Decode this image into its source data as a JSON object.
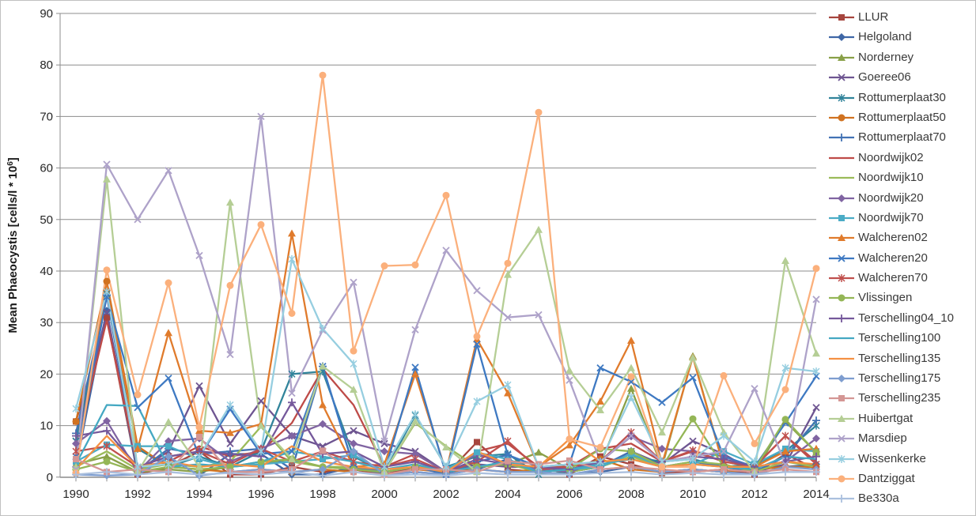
{
  "chart_data": {
    "type": "line",
    "title": "",
    "xlabel": "",
    "ylabel_main": "Mean Phaeocystis [cells/l * 10",
    "ylabel_sup": "6",
    "ylabel_close": "]",
    "ylim": [
      0,
      90
    ],
    "y_ticks": [
      0,
      10,
      20,
      30,
      40,
      50,
      60,
      70,
      80,
      90
    ],
    "x": [
      1990,
      1991,
      1992,
      1993,
      1994,
      1995,
      1996,
      1997,
      1998,
      1999,
      2000,
      2001,
      2002,
      2003,
      2004,
      2005,
      2006,
      2007,
      2008,
      2009,
      2010,
      2011,
      2012,
      2013,
      2014
    ],
    "x_tick_labels": [
      "1990",
      "1992",
      "1994",
      "1996",
      "1998",
      "2000",
      "2002",
      "2004",
      "2006",
      "2008",
      "2010",
      "2012",
      "2014"
    ],
    "grid": true,
    "legend_position": "right",
    "series": [
      {
        "name": "LLUR",
        "color": "#A6453E",
        "marker": "square",
        "values": [
          10.8,
          31,
          0.5,
          2,
          5,
          0.5,
          0.5,
          2,
          1,
          1.5,
          0.5,
          2,
          0.5,
          6.8,
          1.5,
          1,
          0.5,
          4,
          2.5,
          0.8,
          1,
          1.5,
          0.5,
          4.5,
          1.5
        ]
      },
      {
        "name": "Helgoland",
        "color": "#3F67A6",
        "marker": "diamond",
        "values": [
          2,
          32.3,
          0.5,
          3.8,
          0.3,
          4.5,
          4.5,
          0.5,
          0.5,
          2,
          0.5,
          1,
          0.5,
          1.5,
          3.5,
          1,
          0.5,
          1,
          2,
          1,
          1.5,
          1,
          0.5,
          2,
          2.5
        ]
      },
      {
        "name": "Norderney",
        "color": "#89A048",
        "marker": "triangle",
        "values": [
          2.5,
          4,
          1,
          1.5,
          1,
          2,
          2.5,
          3.5,
          2,
          1.5,
          1,
          2,
          1,
          2,
          2.5,
          4.8,
          1.5,
          2.5,
          17.2,
          2,
          23.5,
          2,
          1,
          10.8,
          4.8
        ]
      },
      {
        "name": "Goeree06",
        "color": "#6E5591",
        "marker": "x",
        "values": [
          7,
          32,
          1,
          5,
          17.7,
          6.5,
          14.8,
          8,
          6,
          9,
          6.5,
          5,
          1,
          2.5,
          2,
          2,
          1,
          2,
          5,
          2.5,
          7,
          4.5,
          1,
          2.5,
          13.5
        ]
      },
      {
        "name": "Rottumerplaat30",
        "color": "#31849B",
        "marker": "asterisk",
        "values": [
          7,
          35.5,
          5.5,
          2,
          4,
          2,
          5,
          20,
          20.5,
          4,
          1,
          12,
          2,
          4,
          4.5,
          0.5,
          1,
          2,
          4,
          3,
          3.5,
          2,
          2.5,
          5,
          10
        ]
      },
      {
        "name": "Rottumerplaat50",
        "color": "#D07220",
        "marker": "circle",
        "values": [
          10.8,
          38,
          6,
          2,
          1.5,
          1,
          1.5,
          1,
          1.5,
          1,
          0.5,
          1.5,
          1,
          1.5,
          1,
          1.5,
          1,
          3.5,
          1.5,
          1,
          1.5,
          1,
          1.5,
          2,
          2
        ]
      },
      {
        "name": "Rottumerplaat70",
        "color": "#4272B4",
        "marker": "plus",
        "values": [
          8.5,
          35.3,
          1,
          5.5,
          4.5,
          5,
          5.5,
          1.5,
          21.5,
          2,
          1,
          2,
          0.5,
          3,
          4.3,
          2,
          1.5,
          2,
          5,
          2,
          3,
          2,
          1,
          4,
          11
        ]
      },
      {
        "name": "Noordwijk02",
        "color": "#BE4B48",
        "marker": "none",
        "values": [
          5.5,
          30.5,
          2,
          3,
          6,
          4,
          5,
          10.5,
          21,
          14,
          2,
          4.5,
          1,
          5,
          6.5,
          2,
          2,
          5.5,
          6.5,
          3,
          5,
          3,
          2,
          8,
          3
        ]
      },
      {
        "name": "Noordwijk10",
        "color": "#9BBB59",
        "marker": "none",
        "values": [
          2,
          5,
          1.5,
          2.5,
          2,
          3,
          9.8,
          3,
          2,
          2,
          1,
          10.5,
          6,
          2,
          2.5,
          1.5,
          1,
          2,
          4,
          2,
          3,
          2.5,
          1,
          3,
          2
        ]
      },
      {
        "name": "Noordwijk20",
        "color": "#8064A2",
        "marker": "diamond",
        "values": [
          6.5,
          10.9,
          1,
          7,
          7.5,
          3,
          5.5,
          8,
          10.3,
          6.5,
          5,
          4.5,
          1,
          4.5,
          2.5,
          1.5,
          1,
          3,
          7.9,
          5.5,
          5,
          4,
          2,
          3,
          7.5
        ]
      },
      {
        "name": "Noordwijk70",
        "color": "#4BACC6",
        "marker": "square",
        "values": [
          3,
          6.3,
          6,
          6,
          3.5,
          2,
          2.5,
          3,
          3.5,
          4.3,
          1,
          2,
          1.5,
          4.8,
          3.5,
          1,
          1.5,
          2,
          4.5,
          2,
          2.5,
          5,
          2.5,
          5.5,
          5
        ]
      },
      {
        "name": "Walcheren02",
        "color": "#E07B2C",
        "marker": "triangle",
        "values": [
          2,
          36.8,
          5.5,
          28,
          9,
          8.6,
          10.3,
          47.3,
          14,
          2,
          2.5,
          20,
          1,
          26.8,
          16.3,
          2,
          6.2,
          14.7,
          26.5,
          2.5,
          23.3,
          2,
          2,
          5,
          5.5
        ]
      },
      {
        "name": "Walcheren20",
        "color": "#3E79C2",
        "marker": "x",
        "values": [
          4,
          35,
          13.5,
          19.2,
          4,
          13.2,
          4.5,
          5,
          21.5,
          2,
          1,
          21.3,
          0.5,
          25.8,
          4.3,
          2,
          2.5,
          21.2,
          18.5,
          14.5,
          19.3,
          4,
          2,
          10.5,
          19.6
        ]
      },
      {
        "name": "Walcheren70",
        "color": "#C0504D",
        "marker": "asterisk",
        "values": [
          5,
          6,
          2,
          4,
          5,
          2.5,
          5.5,
          3,
          5,
          3,
          2,
          3.5,
          1,
          3,
          7,
          1.5,
          2,
          3,
          8.7,
          3,
          5.2,
          3,
          2,
          8,
          2.5
        ]
      },
      {
        "name": "Vlissingen",
        "color": "#94B656",
        "marker": "circle",
        "values": [
          1.5,
          3,
          1,
          2,
          1.5,
          2,
          3,
          3.5,
          2,
          1.5,
          1,
          2,
          1,
          2,
          2.5,
          1,
          1.5,
          5.5,
          5,
          2,
          11.3,
          2,
          1.5,
          11.2,
          4.8
        ]
      },
      {
        "name": "Terschelling04_10",
        "color": "#75589B",
        "marker": "plus",
        "values": [
          8,
          9,
          2,
          4,
          5,
          4.5,
          4,
          14.5,
          4.5,
          5,
          2,
          3,
          1,
          3.5,
          2.5,
          2,
          1.5,
          3,
          8,
          3,
          4,
          3.5,
          2,
          3,
          4
        ]
      },
      {
        "name": "Terschelling100",
        "color": "#44A8C2",
        "marker": "none",
        "values": [
          2.5,
          14,
          13.8,
          2,
          2.5,
          2,
          3,
          5,
          4,
          3,
          1.5,
          2.5,
          1,
          2,
          3,
          1,
          1.5,
          2.5,
          3.5,
          2,
          2.5,
          2,
          1.5,
          4,
          3.5
        ]
      },
      {
        "name": "Terschelling135",
        "color": "#F49143",
        "marker": "none",
        "values": [
          1.5,
          8,
          2,
          3,
          2,
          2.5,
          2,
          6,
          3,
          2,
          1.5,
          2,
          1,
          5,
          2.5,
          2,
          7.4,
          3,
          3.5,
          2,
          2.5,
          2,
          2,
          3,
          2.5
        ]
      },
      {
        "name": "Terschelling175",
        "color": "#7E9DCF",
        "marker": "diamond",
        "values": [
          0.5,
          0.3,
          0.5,
          4,
          0.3,
          1,
          1.5,
          1,
          1.5,
          5,
          0.5,
          1,
          0.5,
          1.5,
          1,
          1,
          0.5,
          1.5,
          2,
          1,
          1.5,
          1,
          0.5,
          2,
          1.5
        ]
      },
      {
        "name": "Terschelling235",
        "color": "#D49694",
        "marker": "square",
        "values": [
          3.5,
          1,
          1.5,
          1,
          7.8,
          1,
          1,
          1.5,
          5.1,
          1,
          0.5,
          1.5,
          1.5,
          1,
          3.1,
          2.5,
          3.2,
          1.5,
          2,
          1.5,
          1,
          1.5,
          1,
          1.5,
          1
        ]
      },
      {
        "name": "Huibertgat",
        "color": "#B5CE95",
        "marker": "triangle",
        "values": [
          2,
          57.8,
          1,
          10.7,
          2,
          53.3,
          10,
          3.5,
          21.5,
          17,
          1,
          10.8,
          5.8,
          1,
          39.3,
          48,
          20.7,
          13,
          21.2,
          8.7,
          23.2,
          8.7,
          1,
          42,
          24
        ]
      },
      {
        "name": "Marsdiep",
        "color": "#AEA2C9",
        "marker": "x",
        "values": [
          1.5,
          60.7,
          50,
          59.5,
          43,
          23.8,
          70,
          16.3,
          28.5,
          37.8,
          7,
          28.6,
          44,
          36.2,
          31,
          31.5,
          18.8,
          3,
          8,
          3,
          4,
          5,
          17.2,
          2.5,
          34.5
        ]
      },
      {
        "name": "Wissenkerke",
        "color": "#96CEE0",
        "marker": "asterisk",
        "values": [
          13.3,
          36,
          2,
          2.5,
          4,
          14,
          5,
          42.3,
          28.8,
          22,
          2,
          12.2,
          2,
          14.7,
          17.9,
          2,
          2.5,
          3,
          15.5,
          3,
          3.5,
          8,
          3,
          21.2,
          20.5
        ]
      },
      {
        "name": "Dantziggat",
        "color": "#FBB07C",
        "marker": "circle",
        "values": [
          0.8,
          40.2,
          16,
          37.7,
          9.7,
          37.2,
          49,
          31.8,
          78,
          24.5,
          41,
          41.2,
          54.7,
          27.3,
          41.5,
          70.8,
          7.4,
          5.8,
          19.5,
          2,
          2,
          19.7,
          6.5,
          17,
          40.5
        ]
      },
      {
        "name": "Be330a",
        "color": "#ABC0DE",
        "marker": "plus",
        "values": [
          0.5,
          1,
          0.5,
          1,
          0.5,
          0.8,
          0.5,
          1,
          0.3,
          1,
          0.3,
          0.5,
          0.3,
          0.8,
          0.5,
          0.5,
          0.5,
          0.8,
          1,
          0.5,
          0.8,
          0.5,
          0.5,
          1,
          1
        ]
      }
    ],
    "style": {
      "grid_color": "#8C8C8C",
      "axis_color": "#8C8C8C",
      "tick_text_color": "#262626",
      "background": "#FFFFFF",
      "frame_border": "#C0C0C0"
    }
  }
}
